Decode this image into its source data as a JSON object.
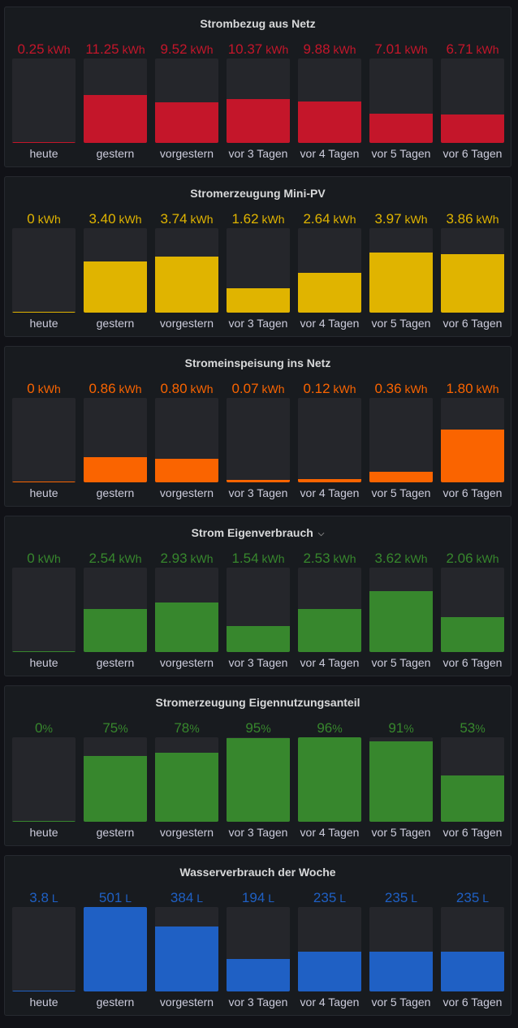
{
  "days": [
    "heute",
    "gestern",
    "vorgestern",
    "vor 3 Tagen",
    "vor 4 Tagen",
    "vor 5 Tagen",
    "vor 6 Tagen"
  ],
  "panels": [
    {
      "id": "strombezug",
      "title": "Strombezug aus Netz",
      "color": "#c4162a",
      "max": 20,
      "series": [
        {
          "value": 0.25,
          "display": "0.25",
          "unit": "kWh"
        },
        {
          "value": 11.25,
          "display": "11.25",
          "unit": "kWh"
        },
        {
          "value": 9.52,
          "display": "9.52",
          "unit": "kWh"
        },
        {
          "value": 10.37,
          "display": "10.37",
          "unit": "kWh"
        },
        {
          "value": 9.88,
          "display": "9.88",
          "unit": "kWh"
        },
        {
          "value": 7.01,
          "display": "7.01",
          "unit": "kWh"
        },
        {
          "value": 6.71,
          "display": "6.71",
          "unit": "kWh"
        }
      ]
    },
    {
      "id": "mini-pv",
      "title": "Stromerzeugung Mini-PV",
      "color": "#e0b400",
      "max": 5.6,
      "series": [
        {
          "value": 0,
          "display": "0",
          "unit": "kWh"
        },
        {
          "value": 3.4,
          "display": "3.40",
          "unit": "kWh"
        },
        {
          "value": 3.74,
          "display": "3.74",
          "unit": "kWh"
        },
        {
          "value": 1.62,
          "display": "1.62",
          "unit": "kWh"
        },
        {
          "value": 2.64,
          "display": "2.64",
          "unit": "kWh"
        },
        {
          "value": 3.97,
          "display": "3.97",
          "unit": "kWh"
        },
        {
          "value": 3.86,
          "display": "3.86",
          "unit": "kWh"
        }
      ]
    },
    {
      "id": "einspeisung",
      "title": "Stromeinspeisung ins Netz",
      "color": "#fa6400",
      "max": 2.9,
      "series": [
        {
          "value": 0,
          "display": "0",
          "unit": "kWh"
        },
        {
          "value": 0.86,
          "display": "0.86",
          "unit": "kWh"
        },
        {
          "value": 0.8,
          "display": "0.80",
          "unit": "kWh"
        },
        {
          "value": 0.07,
          "display": "0.07",
          "unit": "kWh"
        },
        {
          "value": 0.12,
          "display": "0.12",
          "unit": "kWh"
        },
        {
          "value": 0.36,
          "display": "0.36",
          "unit": "kWh"
        },
        {
          "value": 1.8,
          "display": "1.80",
          "unit": "kWh"
        }
      ]
    },
    {
      "id": "eigenverbrauch",
      "title": "Strom Eigenverbrauch",
      "has_menu": true,
      "color": "#37872d",
      "max": 5.0,
      "series": [
        {
          "value": 0,
          "display": "0",
          "unit": "kWh"
        },
        {
          "value": 2.54,
          "display": "2.54",
          "unit": "kWh"
        },
        {
          "value": 2.93,
          "display": "2.93",
          "unit": "kWh"
        },
        {
          "value": 1.54,
          "display": "1.54",
          "unit": "kWh"
        },
        {
          "value": 2.53,
          "display": "2.53",
          "unit": "kWh"
        },
        {
          "value": 3.62,
          "display": "3.62",
          "unit": "kWh"
        },
        {
          "value": 2.06,
          "display": "2.06",
          "unit": "kWh"
        }
      ]
    },
    {
      "id": "eigennutzungsanteil",
      "title": "Stromerzeugung Eigennutzungsanteil",
      "color": "#37872d",
      "max": 96,
      "series": [
        {
          "value": 0,
          "display": "0",
          "unit": "%"
        },
        {
          "value": 75,
          "display": "75",
          "unit": "%"
        },
        {
          "value": 78,
          "display": "78",
          "unit": "%"
        },
        {
          "value": 95,
          "display": "95",
          "unit": "%"
        },
        {
          "value": 96,
          "display": "96",
          "unit": "%"
        },
        {
          "value": 91,
          "display": "91",
          "unit": "%"
        },
        {
          "value": 53,
          "display": "53",
          "unit": "%"
        }
      ]
    },
    {
      "id": "wasser",
      "title": "Wasserverbrauch der Woche",
      "color": "#1f60c4",
      "max": 501,
      "series": [
        {
          "value": 3.8,
          "display": "3.8",
          "unit": "L"
        },
        {
          "value": 501,
          "display": "501",
          "unit": "L"
        },
        {
          "value": 384,
          "display": "384",
          "unit": "L"
        },
        {
          "value": 194,
          "display": "194",
          "unit": "L"
        },
        {
          "value": 235,
          "display": "235",
          "unit": "L"
        },
        {
          "value": 235,
          "display": "235",
          "unit": "L"
        },
        {
          "value": 235,
          "display": "235",
          "unit": "L"
        }
      ]
    }
  ]
}
